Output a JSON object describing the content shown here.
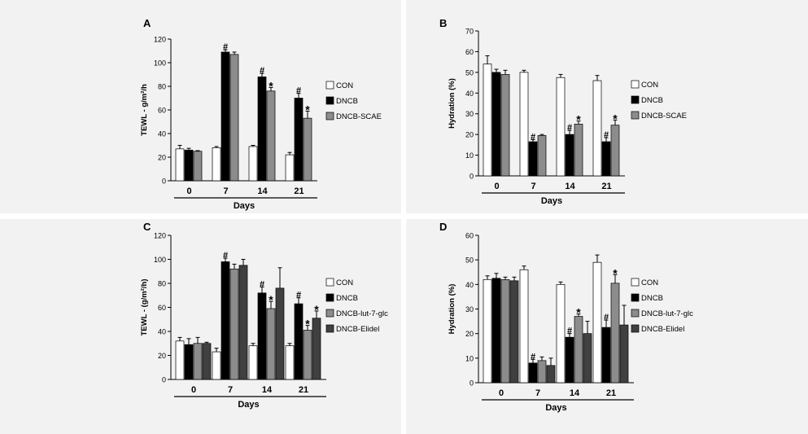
{
  "chart_data": [
    {
      "panel": "A",
      "type": "bar",
      "ylabel": "TEWL - g/m²/h",
      "xlabel": "Days",
      "categories": [
        "0",
        "7",
        "14",
        "21"
      ],
      "ylim": [
        0,
        120
      ],
      "yticks": [
        0,
        20,
        40,
        60,
        80,
        100,
        120
      ],
      "legend_position": "right",
      "series": [
        {
          "name": "CON",
          "color": "#ffffff",
          "values": [
            27,
            28,
            29,
            22
          ],
          "errors": [
            3,
            1,
            1,
            2
          ],
          "marks": [
            "",
            "",
            "",
            ""
          ]
        },
        {
          "name": "DNCB",
          "color": "#000000",
          "values": [
            26,
            109,
            88,
            70
          ],
          "errors": [
            1.5,
            2,
            3,
            4
          ],
          "marks": [
            "",
            "#",
            "#",
            "#"
          ]
        },
        {
          "name": "DNCB-SCAE",
          "color": "#8c8c8c",
          "values": [
            25,
            107,
            76,
            53
          ],
          "errors": [
            0.5,
            2,
            3,
            6
          ],
          "marks": [
            "",
            "",
            "*",
            "*"
          ]
        }
      ]
    },
    {
      "panel": "B",
      "type": "bar",
      "ylabel": "Hydration (%)",
      "xlabel": "Days",
      "categories": [
        "0",
        "7",
        "14",
        "21"
      ],
      "ylim": [
        0,
        70
      ],
      "yticks": [
        0,
        10,
        20,
        30,
        40,
        50,
        60,
        70
      ],
      "legend_position": "right",
      "series": [
        {
          "name": "CON",
          "color": "#ffffff",
          "values": [
            54,
            50,
            47.5,
            46
          ],
          "errors": [
            4,
            1,
            1.5,
            2.5
          ],
          "marks": [
            "",
            "",
            "",
            ""
          ]
        },
        {
          "name": "DNCB",
          "color": "#000000",
          "values": [
            50,
            16.5,
            20,
            16.5
          ],
          "errors": [
            1.5,
            1,
            2,
            2
          ],
          "marks": [
            "",
            "#",
            "#",
            "#"
          ]
        },
        {
          "name": "DNCB-SCAE",
          "color": "#8c8c8c",
          "values": [
            49,
            19.5,
            25,
            24.5
          ],
          "errors": [
            2,
            0.5,
            1.5,
            2.5
          ],
          "marks": [
            "",
            "",
            "*",
            "*"
          ]
        }
      ]
    },
    {
      "panel": "C",
      "type": "bar",
      "ylabel": "TEWL - (g/m²/h)",
      "xlabel": "Days",
      "categories": [
        "0",
        "7",
        "14",
        "21"
      ],
      "ylim": [
        0,
        120
      ],
      "yticks": [
        0,
        20,
        40,
        60,
        80,
        100,
        120
      ],
      "legend_position": "right",
      "series": [
        {
          "name": "CON",
          "color": "#ffffff",
          "values": [
            32,
            23,
            28,
            28
          ],
          "errors": [
            3,
            3,
            2,
            2
          ],
          "marks": [
            "",
            "",
            "",
            ""
          ]
        },
        {
          "name": "DNCB",
          "color": "#000000",
          "values": [
            29,
            98,
            72,
            63
          ],
          "errors": [
            5,
            3,
            5,
            5
          ],
          "marks": [
            "",
            "#",
            "#",
            "#"
          ]
        },
        {
          "name": "DNCB-lut-7-glc",
          "color": "#8c8c8c",
          "values": [
            30,
            92,
            59,
            41
          ],
          "errors": [
            5,
            4,
            6,
            4
          ],
          "marks": [
            "",
            "",
            "*",
            "*"
          ]
        },
        {
          "name": "DNCB-Elidel",
          "color": "#404040",
          "values": [
            30,
            95,
            76,
            51
          ],
          "errors": [
            1,
            5,
            17,
            6
          ],
          "marks": [
            "",
            "",
            "",
            "*"
          ]
        }
      ]
    },
    {
      "panel": "D",
      "type": "bar",
      "ylabel": "Hydration (%)",
      "xlabel": "Days",
      "categories": [
        "0",
        "7",
        "14",
        "21"
      ],
      "ylim": [
        0,
        60
      ],
      "yticks": [
        0,
        10,
        20,
        30,
        40,
        50,
        60
      ],
      "legend_position": "right",
      "series": [
        {
          "name": "CON",
          "color": "#ffffff",
          "values": [
            42,
            46,
            40,
            49
          ],
          "errors": [
            1.5,
            1.5,
            1,
            3
          ],
          "marks": [
            "",
            "",
            "",
            ""
          ]
        },
        {
          "name": "DNCB",
          "color": "#000000",
          "values": [
            42.5,
            8,
            18.5,
            22.5
          ],
          "errors": [
            2,
            1.5,
            1.5,
            3
          ],
          "marks": [
            "",
            "#",
            "#",
            "#"
          ]
        },
        {
          "name": "DNCB-lut-7-glc",
          "color": "#8c8c8c",
          "values": [
            42,
            9,
            27,
            40.5
          ],
          "errors": [
            1,
            1.5,
            1,
            3.5
          ],
          "marks": [
            "",
            "",
            "*",
            "*"
          ]
        },
        {
          "name": "DNCB-Elidel",
          "color": "#404040",
          "values": [
            41.5,
            7,
            20,
            23.5
          ],
          "errors": [
            1.5,
            3,
            5,
            8
          ],
          "marks": [
            "",
            "",
            "",
            ""
          ]
        }
      ]
    }
  ]
}
